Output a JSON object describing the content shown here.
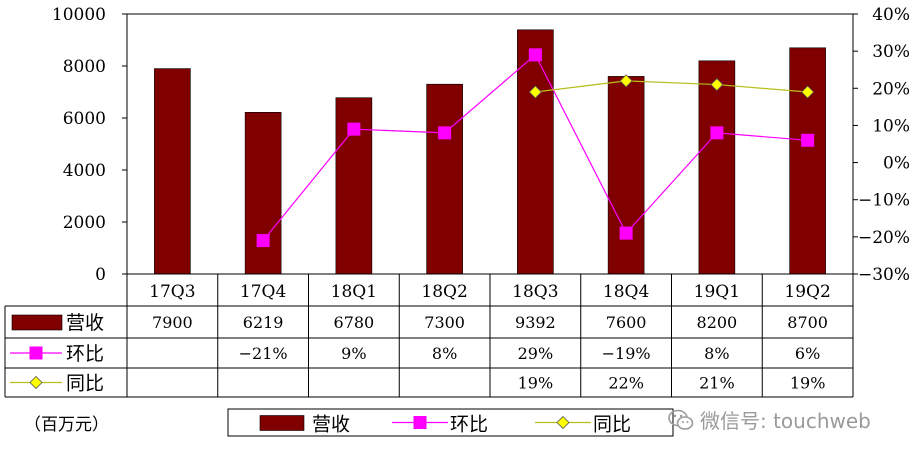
{
  "chart_data": {
    "type": "bar",
    "categories": [
      "17Q3",
      "17Q4",
      "18Q1",
      "18Q2",
      "18Q3",
      "18Q4",
      "19Q1",
      "19Q2"
    ],
    "series": [
      {
        "name": "营收",
        "kind": "bar",
        "axis": "left",
        "color": "#800000",
        "values": [
          7900,
          6219,
          6780,
          7300,
          9392,
          7600,
          8200,
          8700
        ],
        "table": [
          "7900",
          "6219",
          "6780",
          "7300",
          "9392",
          "7600",
          "8200",
          "8700"
        ]
      },
      {
        "name": "环比",
        "kind": "line",
        "axis": "right",
        "color": "#ff00ff",
        "marker": "square",
        "values": [
          null,
          -21,
          9,
          8,
          29,
          -19,
          8,
          6
        ],
        "table": [
          "",
          "−21%",
          "9%",
          "8%",
          "29%",
          "−19%",
          "8%",
          "6%"
        ]
      },
      {
        "name": "同比",
        "kind": "line",
        "axis": "right",
        "color": "#c8cc00",
        "marker": "diamond",
        "values": [
          null,
          null,
          null,
          null,
          19,
          22,
          21,
          19
        ],
        "table": [
          "",
          "",
          "",
          "",
          "19%",
          "22%",
          "21%",
          "19%"
        ]
      }
    ],
    "ylim": [
      0,
      10000
    ],
    "yticks": [
      "0",
      "2000",
      "4000",
      "6000",
      "8000",
      "10000"
    ],
    "y2lim": [
      -30,
      40
    ],
    "y2ticks": [
      "−30%",
      "−20%",
      "−10%",
      "0%",
      "10%",
      "20%",
      "30%",
      "40%"
    ],
    "grid": false,
    "legend_position": "bottom",
    "unit_label": "（百万元）"
  },
  "watermark": "微信号: touchweb"
}
